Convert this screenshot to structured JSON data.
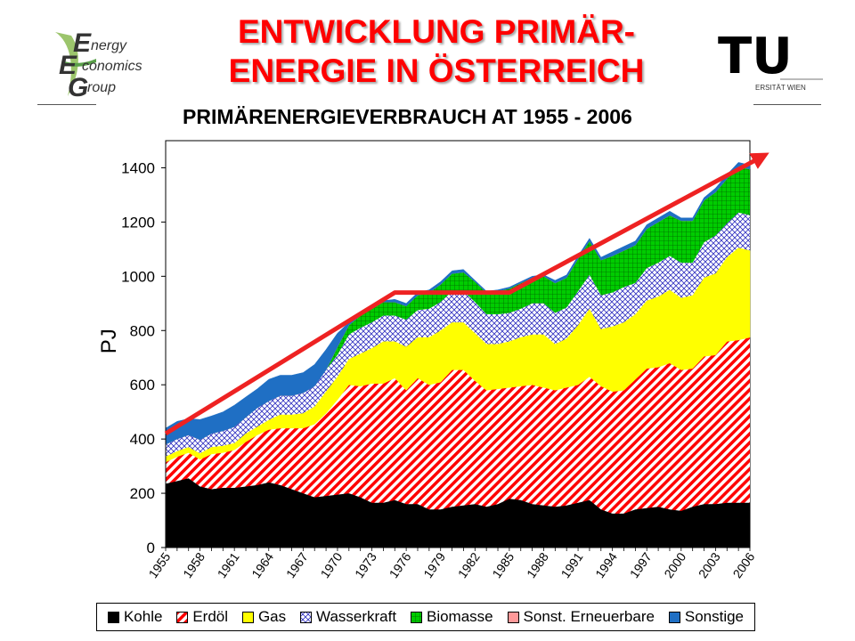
{
  "slide": {
    "title_line1": "ENTWICKLUNG PRIMÄR-",
    "title_line2": "ENERGIE IN ÖSTERREICH"
  },
  "logos": {
    "eeg": {
      "letter1": "E",
      "word1": "nergy",
      "letter2": "E",
      "word2": "conomics",
      "letter3": "G",
      "word3": "roup"
    },
    "tu": {
      "mark": "TU",
      "subtitle": "ERSITÄT WIEN"
    }
  },
  "colors": {
    "title": "#ff0000",
    "Kohle": "#000000",
    "Erdöl": "#ff0000",
    "Gas": "#ffff00",
    "Wasserkraft": "#3030c0",
    "Biomasse": "#00cc00",
    "Sonst. Erneuerbare": "#ff9999",
    "Sonstige": "#1f6fc4",
    "trend": "#ee2222"
  },
  "chart_data": {
    "type": "area",
    "stacked": true,
    "title": "PRIMÄRENERGIEVERBRAUCH AT 1955 - 2006",
    "ylabel": "PJ",
    "xlabel": "",
    "ylim": [
      0,
      1500
    ],
    "yticks": [
      0,
      200,
      400,
      600,
      800,
      1000,
      1200,
      1400
    ],
    "x": [
      1955,
      1956,
      1957,
      1958,
      1959,
      1960,
      1961,
      1962,
      1963,
      1964,
      1965,
      1966,
      1967,
      1968,
      1969,
      1970,
      1971,
      1972,
      1973,
      1974,
      1975,
      1976,
      1977,
      1978,
      1979,
      1980,
      1981,
      1982,
      1983,
      1984,
      1985,
      1986,
      1987,
      1988,
      1989,
      1990,
      1991,
      1992,
      1993,
      1994,
      1995,
      1996,
      1997,
      1998,
      1999,
      2000,
      2001,
      2002,
      2003,
      2004,
      2005,
      2006
    ],
    "xtick_labels": [
      "1955",
      "1958",
      "1961",
      "1964",
      "1967",
      "1970",
      "1973",
      "1976",
      "1979",
      "1982",
      "1985",
      "1988",
      "1991",
      "1994",
      "1997",
      "2000",
      "2003",
      "2006"
    ],
    "legend_position": "bottom",
    "series": [
      {
        "name": "Kohle",
        "pattern": "solid",
        "values": [
          235,
          245,
          255,
          225,
          215,
          220,
          220,
          225,
          230,
          240,
          230,
          215,
          200,
          185,
          190,
          195,
          200,
          185,
          165,
          165,
          175,
          160,
          160,
          140,
          140,
          150,
          155,
          160,
          150,
          160,
          180,
          175,
          160,
          155,
          150,
          155,
          165,
          175,
          140,
          125,
          125,
          140,
          145,
          150,
          140,
          135,
          150,
          160,
          160,
          165,
          165,
          165
        ]
      },
      {
        "name": "Erdöl",
        "pattern": "diagonal-stripes",
        "values": [
          80,
          90,
          95,
          100,
          130,
          130,
          140,
          165,
          185,
          195,
          210,
          225,
          240,
          270,
          305,
          350,
          400,
          410,
          440,
          440,
          450,
          420,
          465,
          460,
          470,
          505,
          500,
          455,
          430,
          425,
          410,
          420,
          440,
          435,
          430,
          435,
          435,
          455,
          455,
          450,
          455,
          480,
          515,
          515,
          540,
          520,
          510,
          545,
          550,
          595,
          600,
          610
        ]
      },
      {
        "name": "Gas",
        "pattern": "solid",
        "values": [
          20,
          20,
          20,
          22,
          25,
          25,
          25,
          30,
          30,
          35,
          50,
          50,
          55,
          65,
          80,
          85,
          95,
          120,
          130,
          155,
          135,
          160,
          150,
          175,
          190,
          175,
          175,
          175,
          170,
          165,
          170,
          180,
          185,
          195,
          170,
          180,
          220,
          250,
          210,
          240,
          250,
          240,
          250,
          260,
          270,
          265,
          270,
          290,
          300,
          310,
          340,
          320
        ]
      },
      {
        "name": "Wasserkraft",
        "pattern": "crosshatch",
        "values": [
          45,
          45,
          45,
          50,
          50,
          55,
          60,
          60,
          70,
          70,
          70,
          70,
          75,
          75,
          80,
          80,
          90,
          95,
          95,
          95,
          95,
          100,
          100,
          105,
          105,
          115,
          115,
          115,
          110,
          110,
          105,
          105,
          115,
          115,
          115,
          115,
          125,
          125,
          125,
          125,
          130,
          115,
          120,
          125,
          125,
          130,
          120,
          130,
          140,
          125,
          130,
          130
        ]
      },
      {
        "name": "Biomasse",
        "pattern": "grid",
        "values": [
          0,
          0,
          0,
          0,
          0,
          0,
          0,
          0,
          0,
          0,
          0,
          0,
          0,
          0,
          0,
          30,
          35,
          45,
          50,
          50,
          50,
          50,
          55,
          60,
          65,
          65,
          70,
          75,
          80,
          85,
          90,
          95,
          95,
          100,
          110,
          110,
          120,
          125,
          130,
          135,
          135,
          140,
          145,
          150,
          150,
          155,
          155,
          155,
          160,
          165,
          170,
          170
        ]
      },
      {
        "name": "Sonst. Erneuerbare",
        "pattern": "solid",
        "values": [
          0,
          0,
          0,
          0,
          0,
          0,
          0,
          0,
          0,
          0,
          0,
          0,
          0,
          0,
          0,
          0,
          0,
          0,
          0,
          0,
          0,
          0,
          0,
          0,
          0,
          0,
          0,
          0,
          0,
          0,
          0,
          0,
          0,
          0,
          0,
          0,
          0,
          0,
          0,
          0,
          0,
          0,
          0,
          0,
          0,
          0,
          0,
          0,
          0,
          0,
          0,
          0
        ]
      },
      {
        "name": "Sonstige",
        "pattern": "solid",
        "values": [
          60,
          65,
          60,
          75,
          65,
          70,
          80,
          75,
          70,
          80,
          75,
          75,
          75,
          80,
          75,
          50,
          10,
          10,
          10,
          5,
          10,
          10,
          10,
          10,
          10,
          10,
          10,
          5,
          5,
          5,
          5,
          5,
          5,
          5,
          10,
          10,
          10,
          10,
          10,
          15,
          15,
          15,
          15,
          15,
          15,
          10,
          10,
          10,
          15,
          15,
          15,
          15
        ]
      }
    ],
    "trend_line": {
      "x": [
        1955,
        1975,
        1985,
        2007
      ],
      "y": [
        420,
        940,
        940,
        1440
      ]
    }
  }
}
